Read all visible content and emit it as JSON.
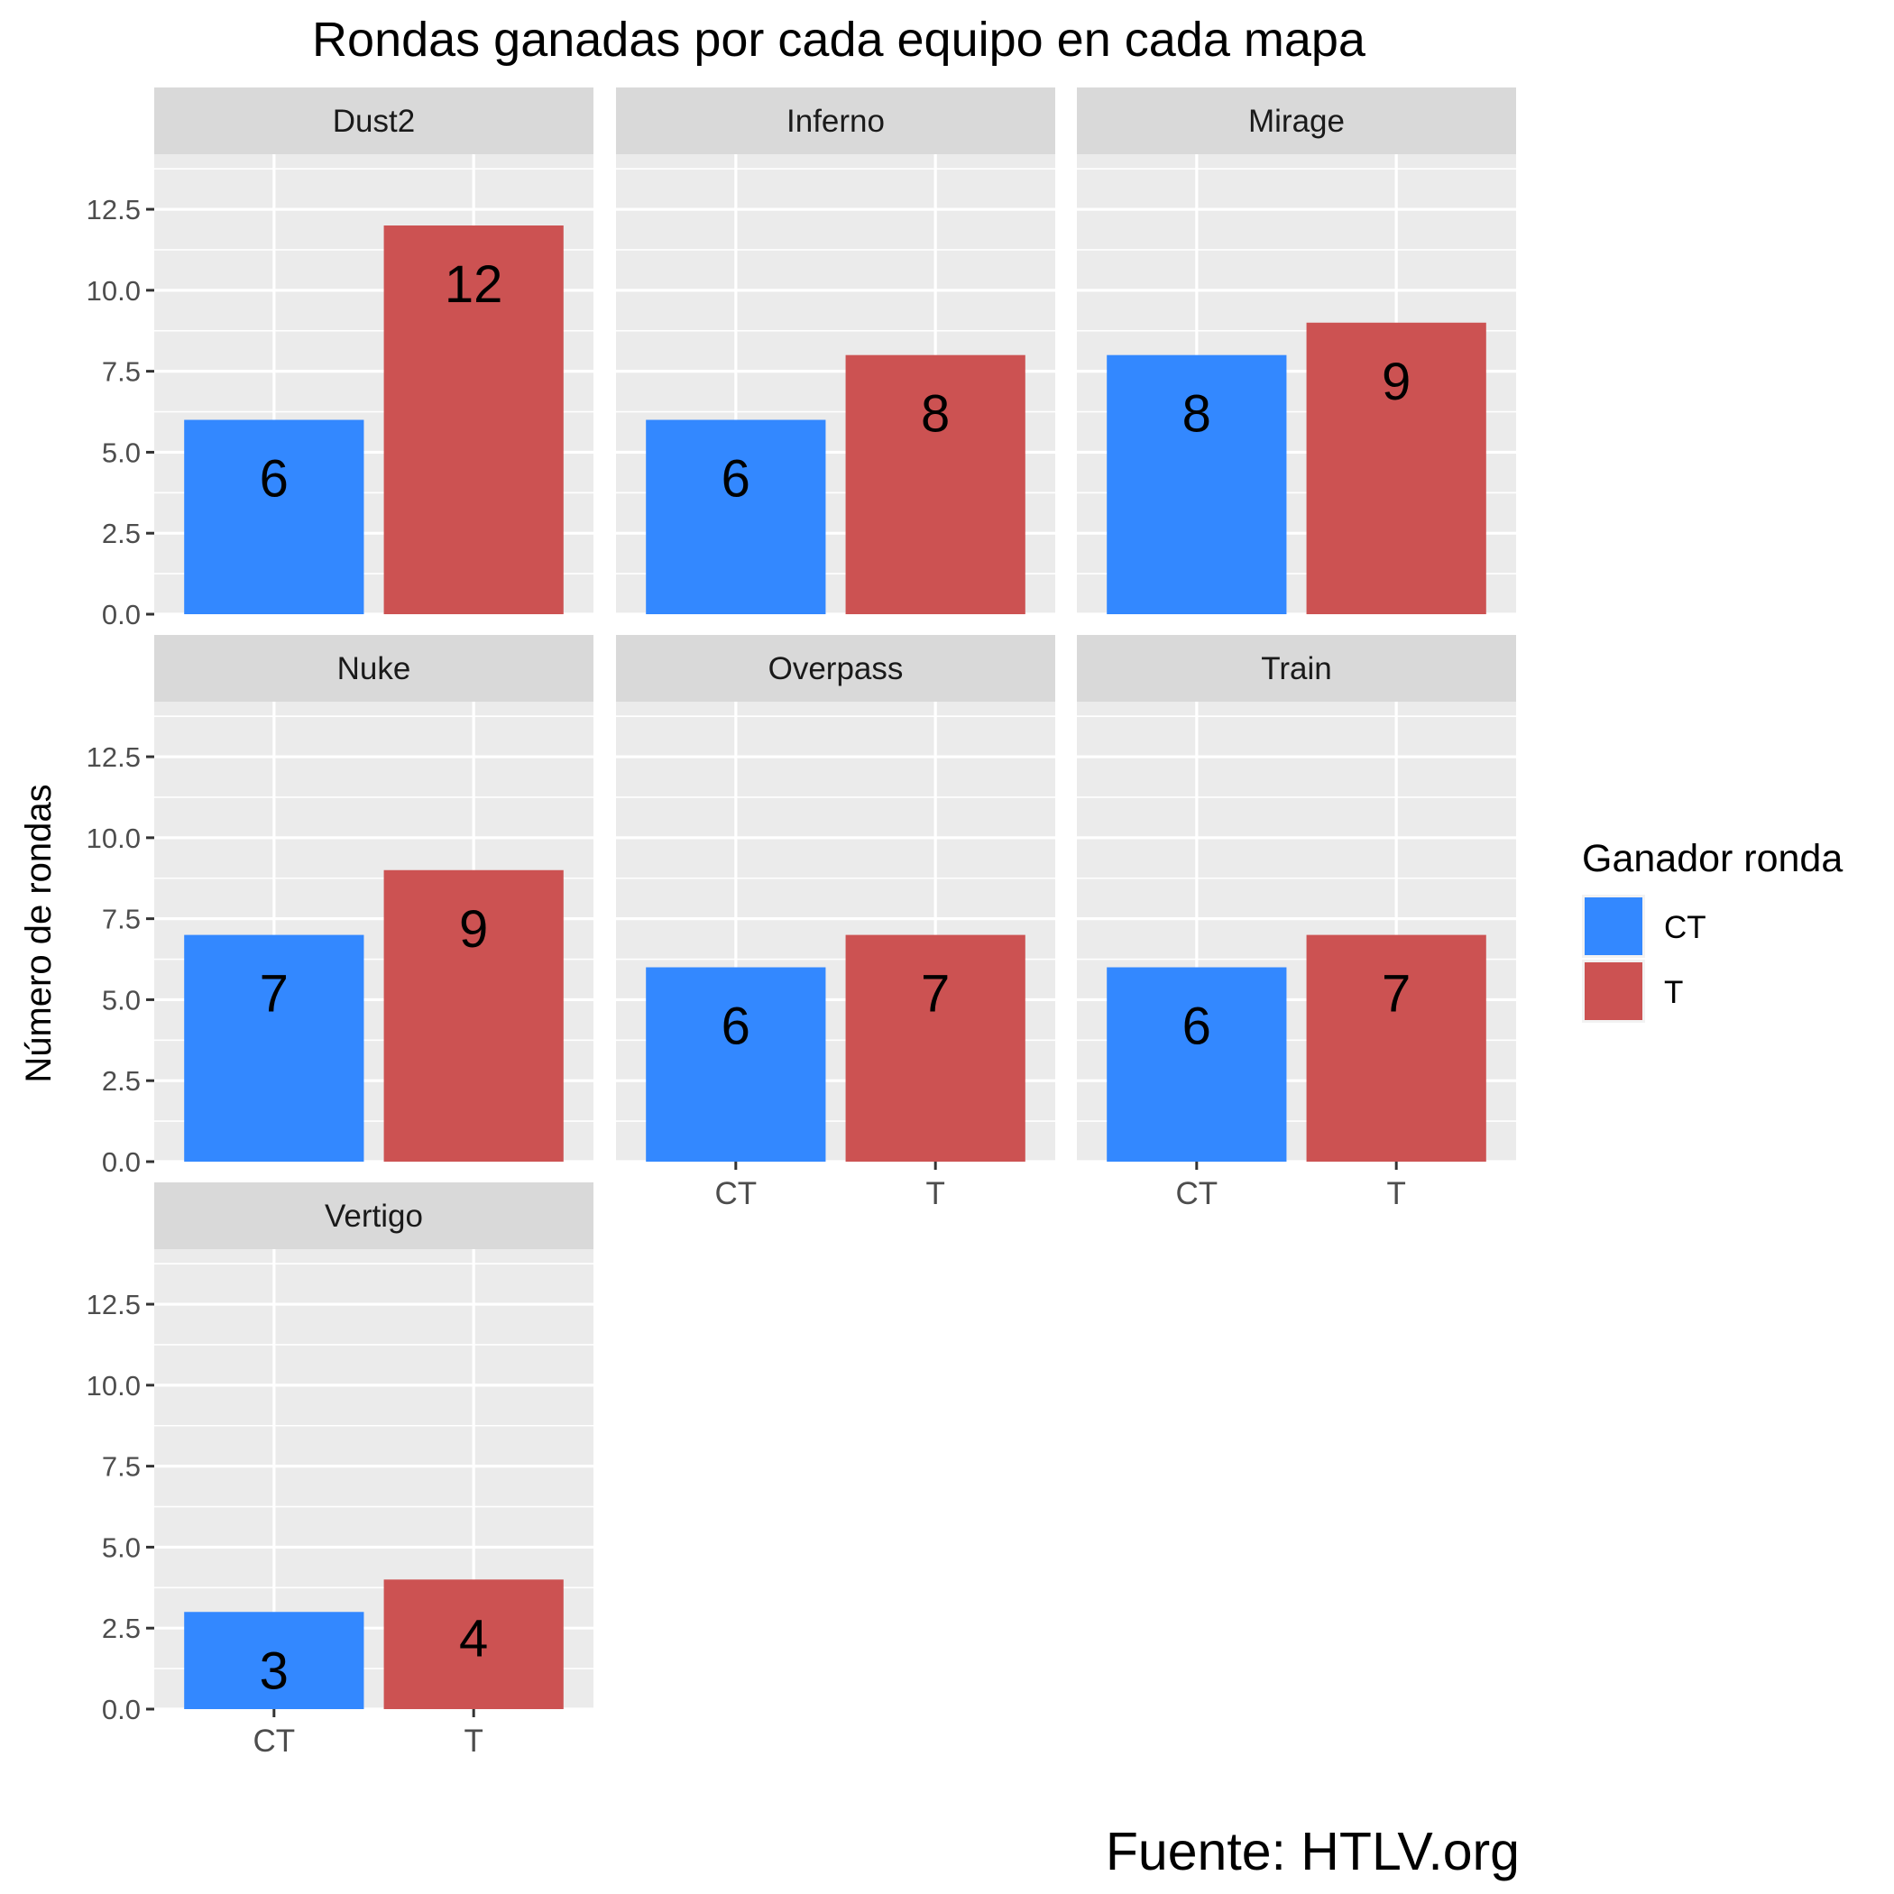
{
  "chart_data": {
    "type": "bar",
    "title": "Rondas ganadas por cada equipo en cada mapa",
    "ylabel": "Número de rondas",
    "xlabel": "",
    "categories": [
      "CT",
      "T"
    ],
    "ylim": [
      0,
      14.2
    ],
    "yticks": [
      0,
      2.5,
      5,
      7.5,
      10,
      12.5
    ],
    "ytick_labels": [
      "0.0",
      "2.5",
      "5.0",
      "7.5",
      "10.0",
      "12.5"
    ],
    "grid": true,
    "facet_columns": 3,
    "panels": [
      {
        "name": "Dust2",
        "values": [
          6,
          12
        ]
      },
      {
        "name": "Inferno",
        "values": [
          6,
          8
        ]
      },
      {
        "name": "Mirage",
        "values": [
          8,
          9
        ]
      },
      {
        "name": "Nuke",
        "values": [
          7,
          9
        ]
      },
      {
        "name": "Overpass",
        "values": [
          6,
          7
        ]
      },
      {
        "name": "Train",
        "values": [
          6,
          7
        ]
      },
      {
        "name": "Vertigo",
        "values": [
          3,
          4
        ]
      }
    ],
    "legend": {
      "title": "Ganador ronda",
      "position": "right",
      "items": [
        {
          "label": "CT",
          "color": "#3388ff"
        },
        {
          "label": "T",
          "color": "#cc5252"
        }
      ]
    },
    "caption": "Fuente: HTLV.org"
  }
}
